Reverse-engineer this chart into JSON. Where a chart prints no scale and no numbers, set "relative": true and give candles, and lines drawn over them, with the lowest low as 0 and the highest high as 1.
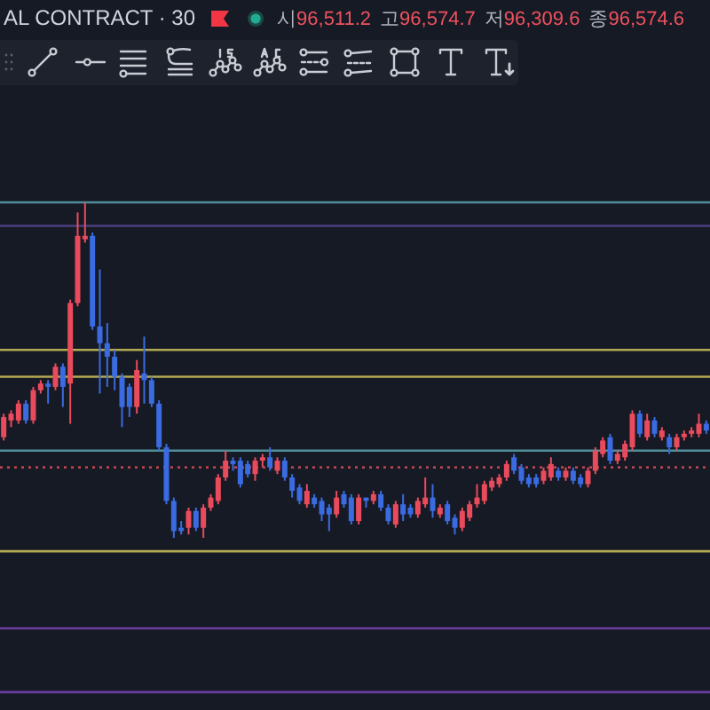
{
  "chart_data": {
    "type": "candlestick",
    "title": "AL CONTRACT · 30",
    "annotations": [
      "시96,511.2",
      "고96,574.7",
      "저96,309.6",
      "종96,574.6"
    ],
    "relative": true,
    "categories": [
      null,
      null,
      null,
      null,
      null,
      null,
      null,
      null,
      null,
      null,
      null,
      null,
      null,
      null,
      null,
      null,
      null,
      null,
      null,
      null,
      null,
      null,
      null,
      null,
      null,
      null,
      null,
      null,
      null,
      null,
      null,
      null,
      null,
      null,
      null,
      null,
      null,
      null,
      null,
      null,
      null,
      null,
      null,
      null,
      null,
      null,
      null,
      null,
      null,
      null,
      null,
      null,
      null,
      null,
      null,
      null,
      null,
      null,
      null,
      null,
      null,
      null,
      null,
      null,
      null,
      null,
      null,
      null,
      null,
      null,
      null,
      null,
      null,
      null,
      null,
      null,
      null,
      null,
      null,
      null,
      null,
      null,
      null,
      null,
      null,
      null,
      null,
      null,
      null,
      null,
      null,
      null,
      null,
      null,
      null,
      null
    ],
    "ohlc": [
      [
        0.3,
        0.37,
        0.29,
        0.36
      ],
      [
        0.35,
        0.38,
        0.33,
        0.37
      ],
      [
        0.35,
        0.41,
        0.34,
        0.4
      ],
      [
        0.4,
        0.41,
        0.34,
        0.35
      ],
      [
        0.35,
        0.45,
        0.34,
        0.44
      ],
      [
        0.44,
        0.47,
        0.43,
        0.46
      ],
      [
        0.46,
        0.47,
        0.4,
        0.45
      ],
      [
        0.45,
        0.52,
        0.44,
        0.51
      ],
      [
        0.51,
        0.52,
        0.39,
        0.45
      ],
      [
        0.46,
        0.71,
        0.34,
        0.7
      ],
      [
        0.7,
        0.97,
        0.69,
        0.9
      ],
      [
        0.89,
        1.0,
        0.88,
        0.9
      ],
      [
        0.9,
        0.91,
        0.62,
        0.63
      ],
      [
        0.63,
        0.8,
        0.43,
        0.58
      ],
      [
        0.58,
        0.64,
        0.45,
        0.54
      ],
      [
        0.54,
        0.56,
        0.44,
        0.48
      ],
      [
        0.48,
        0.49,
        0.33,
        0.39
      ],
      [
        0.45,
        0.46,
        0.36,
        0.39
      ],
      [
        0.39,
        0.53,
        0.37,
        0.5
      ],
      [
        0.49,
        0.6,
        0.4,
        0.47
      ],
      [
        0.47,
        0.48,
        0.39,
        0.4
      ],
      [
        0.4,
        0.41,
        0.26,
        0.27
      ],
      [
        0.27,
        0.28,
        0.1,
        0.11
      ],
      [
        0.11,
        0.12,
        0,
        0.02
      ],
      [
        0.03,
        0.05,
        0.01,
        0.02
      ],
      [
        0.03,
        0.09,
        0.01,
        0.08
      ],
      [
        0.08,
        0.09,
        0.02,
        0.03
      ],
      [
        0.03,
        0.1,
        0,
        0.09
      ],
      [
        0.09,
        0.13,
        0.08,
        0.12
      ],
      [
        0.11,
        0.19,
        0.1,
        0.18
      ],
      [
        0.18,
        0.26,
        0.17,
        0.23
      ],
      [
        0.23,
        0.24,
        0.2,
        0.22
      ],
      [
        0.23,
        0.24,
        0.15,
        0.16
      ],
      [
        0.22,
        0.23,
        0.18,
        0.19
      ],
      [
        0.19,
        0.24,
        0.17,
        0.23
      ],
      [
        0.23,
        0.25,
        0.21,
        0.24
      ],
      [
        0.24,
        0.27,
        0.2,
        0.21
      ],
      [
        0.2,
        0.24,
        0.19,
        0.23
      ],
      [
        0.23,
        0.24,
        0.17,
        0.18
      ],
      [
        0.18,
        0.19,
        0.12,
        0.14
      ],
      [
        0.15,
        0.16,
        0.1,
        0.11
      ],
      [
        0.1,
        0.16,
        0.09,
        0.14
      ],
      [
        0.12,
        0.13,
        0.09,
        0.1
      ],
      [
        0.11,
        0.12,
        0.05,
        0.07
      ],
      [
        0.09,
        0.1,
        0.02,
        0.07
      ],
      [
        0.07,
        0.14,
        0.06,
        0.12
      ],
      [
        0.13,
        0.14,
        0.09,
        0.1
      ],
      [
        0.12,
        0.13,
        0.04,
        0.05
      ],
      [
        0.05,
        0.13,
        0.04,
        0.12
      ],
      [
        0.12,
        0.12,
        0.09,
        0.11
      ],
      [
        0.11,
        0.14,
        0.1,
        0.13
      ],
      [
        0.13,
        0.14,
        0.08,
        0.09
      ],
      [
        0.09,
        0.1,
        0.04,
        0.05
      ],
      [
        0.04,
        0.11,
        0.03,
        0.1
      ],
      [
        0.1,
        0.13,
        0.05,
        0.07
      ],
      [
        0.09,
        0.1,
        0.06,
        0.07
      ],
      [
        0.07,
        0.12,
        0.06,
        0.11
      ],
      [
        0.1,
        0.18,
        0.09,
        0.12
      ],
      [
        0.12,
        0.16,
        0.06,
        0.08
      ],
      [
        0.07,
        0.1,
        0.06,
        0.09
      ],
      [
        0.1,
        0.11,
        0.04,
        0.05
      ],
      [
        0.06,
        0.07,
        0.01,
        0.03
      ],
      [
        0.03,
        0.09,
        0.02,
        0.08
      ],
      [
        0.06,
        0.11,
        0.05,
        0.1
      ],
      [
        0.1,
        0.16,
        0.09,
        0.12
      ],
      [
        0.11,
        0.17,
        0.1,
        0.16
      ],
      [
        0.15,
        0.18,
        0.14,
        0.17
      ],
      [
        0.16,
        0.19,
        0.15,
        0.18
      ],
      [
        0.18,
        0.23,
        0.17,
        0.22
      ],
      [
        0.24,
        0.25,
        0.19,
        0.2
      ],
      [
        0.21,
        0.22,
        0.16,
        0.17
      ],
      [
        0.18,
        0.19,
        0.15,
        0.16
      ],
      [
        0.18,
        0.19,
        0.15,
        0.16
      ],
      [
        0.17,
        0.21,
        0.16,
        0.2
      ],
      [
        0.18,
        0.24,
        0.17,
        0.22
      ],
      [
        0.2,
        0.21,
        0.17,
        0.18
      ],
      [
        0.18,
        0.21,
        0.17,
        0.2
      ],
      [
        0.2,
        0.21,
        0.16,
        0.17
      ],
      [
        0.18,
        0.19,
        0.15,
        0.16
      ],
      [
        0.16,
        0.21,
        0.15,
        0.2
      ],
      [
        0.2,
        0.27,
        0.19,
        0.26
      ],
      [
        0.25,
        0.3,
        0.24,
        0.29
      ],
      [
        0.3,
        0.31,
        0.22,
        0.23
      ],
      [
        0.23,
        0.26,
        0.22,
        0.25
      ],
      [
        0.24,
        0.29,
        0.23,
        0.28
      ],
      [
        0.27,
        0.38,
        0.26,
        0.37
      ],
      [
        0.37,
        0.38,
        0.3,
        0.31
      ],
      [
        0.3,
        0.37,
        0.29,
        0.35
      ],
      [
        0.35,
        0.36,
        0.3,
        0.31
      ],
      [
        0.3,
        0.33,
        0.29,
        0.32
      ],
      [
        0.3,
        0.31,
        0.25,
        0.27
      ],
      [
        0.27,
        0.31,
        0.26,
        0.3
      ],
      [
        0.3,
        0.32,
        0.29,
        0.31
      ],
      [
        0.31,
        0.33,
        0.3,
        0.32
      ],
      [
        0.31,
        0.37,
        0.3,
        0.34
      ],
      [
        0.34,
        0.35,
        0.31,
        0.32
      ]
    ],
    "colors": [
      "#ea4b5c",
      "#ea4b5c",
      "#ea4b5c",
      "#3a6be0",
      "#ea4b5c",
      "#ea4b5c",
      "#3a6be0",
      "#ea4b5c",
      "#3a6be0",
      "#ea4b5c",
      "#ea4b5c",
      "#ea4b5c",
      "#3a6be0",
      "#3a6be0",
      "#3a6be0",
      "#3a6be0",
      "#3a6be0",
      "#3a6be0",
      "#ea4b5c",
      "#3a6be0",
      "#3a6be0",
      "#3a6be0",
      "#3a6be0",
      "#3a6be0",
      "#3a6be0",
      "#ea4b5c",
      "#3a6be0",
      "#ea4b5c",
      "#ea4b5c",
      "#ea4b5c",
      "#ea4b5c",
      "#3a6be0",
      "#3a6be0",
      "#3a6be0",
      "#ea4b5c",
      "#ea4b5c",
      "#3a6be0",
      "#ea4b5c",
      "#3a6be0",
      "#3a6be0",
      "#3a6be0",
      "#ea4b5c",
      "#3a6be0",
      "#3a6be0",
      "#3a6be0",
      "#ea4b5c",
      "#3a6be0",
      "#3a6be0",
      "#ea4b5c",
      "#3a6be0",
      "#ea4b5c",
      "#3a6be0",
      "#3a6be0",
      "#ea4b5c",
      "#3a6be0",
      "#3a6be0",
      "#ea4b5c",
      "#ea4b5c",
      "#3a6be0",
      "#ea4b5c",
      "#3a6be0",
      "#3a6be0",
      "#ea4b5c",
      "#ea4b5c",
      "#ea4b5c",
      "#ea4b5c",
      "#ea4b5c",
      "#ea4b5c",
      "#ea4b5c",
      "#3a6be0",
      "#3a6be0",
      "#3a6be0",
      "#3a6be0",
      "#ea4b5c",
      "#ea4b5c",
      "#3a6be0",
      "#ea4b5c",
      "#3a6be0",
      "#3a6be0",
      "#ea4b5c",
      "#ea4b5c",
      "#ea4b5c",
      "#3a6be0",
      "#ea4b5c",
      "#ea4b5c",
      "#ea4b5c",
      "#3a6be0",
      "#ea4b5c",
      "#3a6be0",
      "#ea4b5c",
      "#3a6be0",
      "#ea4b5c",
      "#ea4b5c",
      "#ea4b5c",
      "#ea4b5c",
      "#3a6be0"
    ],
    "ref_lines": [
      {
        "axis": "y",
        "value": 1.0,
        "color": "#4f8e98"
      },
      {
        "axis": "y",
        "value": 0.93,
        "color": "#4a3f7e"
      },
      {
        "axis": "y",
        "value": 0.56,
        "color": "#b4aa52"
      },
      {
        "axis": "y",
        "value": 0.48,
        "color": "#b4aa52"
      },
      {
        "axis": "y",
        "value": 0.26,
        "color": "#4f8e98"
      },
      {
        "axis": "y",
        "value": 0.21,
        "color": "#b8434f",
        "line_style": "dotted"
      },
      {
        "axis": "y",
        "value": -0.04,
        "color": "#b4aa52"
      },
      {
        "axis": "y",
        "value": -0.27,
        "color": "#6b3fa0"
      },
      {
        "axis": "y",
        "value": -0.46,
        "color": "#6b3fa0"
      }
    ]
  }
}
